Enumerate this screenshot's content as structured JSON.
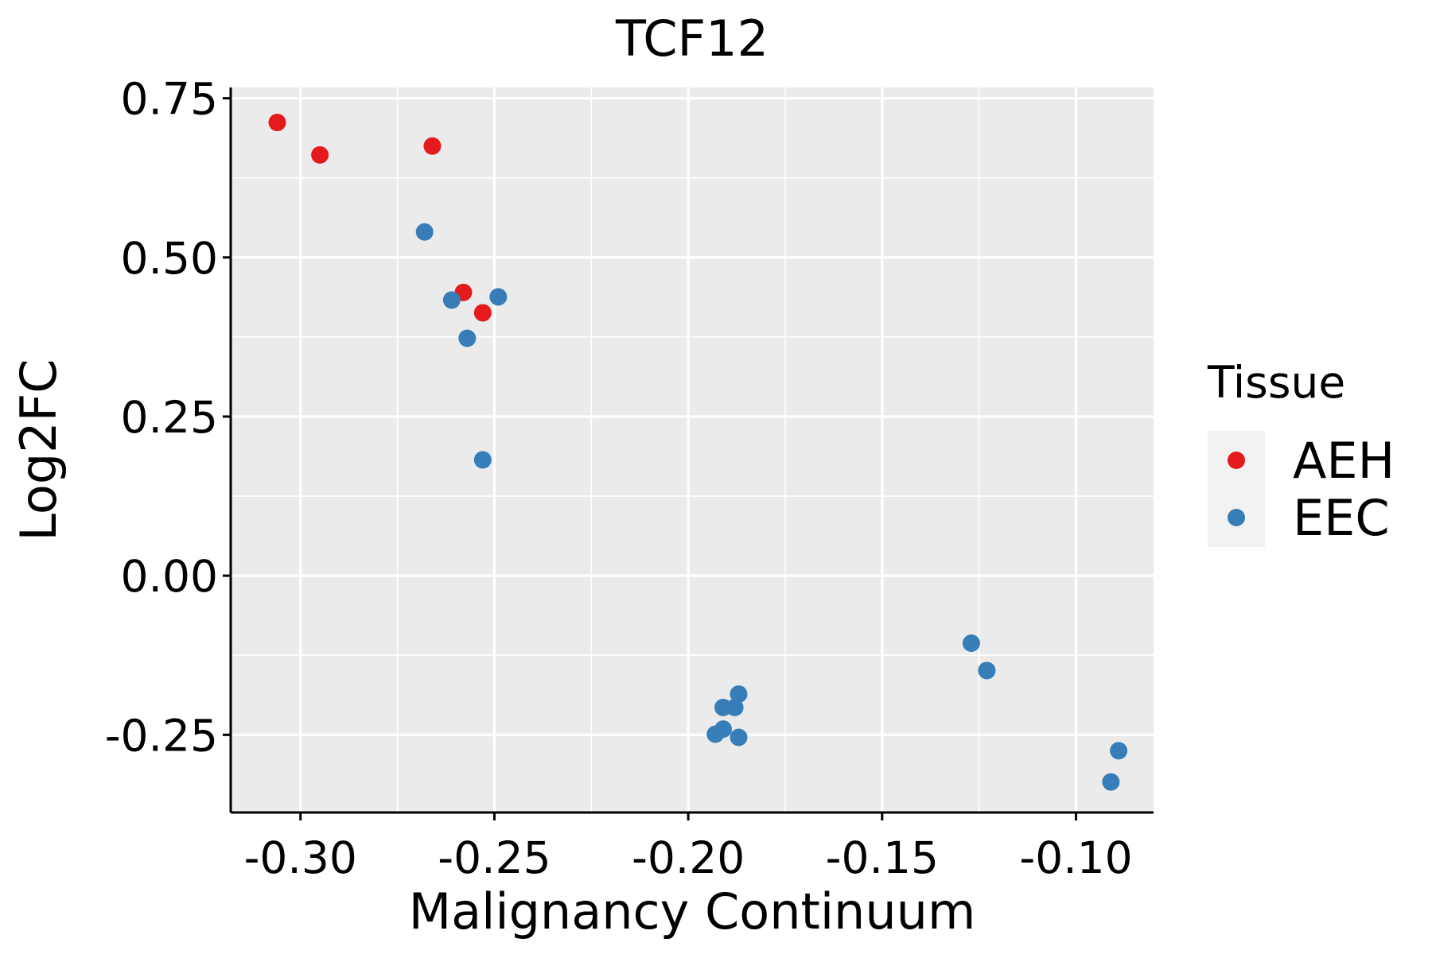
{
  "chart_data": {
    "type": "scatter",
    "title": "TCF12",
    "xlabel": "Malignancy Continuum",
    "ylabel": "Log2FC",
    "xlim": [
      -0.318,
      -0.08
    ],
    "ylim": [
      -0.372,
      0.767
    ],
    "x_ticks": [
      -0.3,
      -0.25,
      -0.2,
      -0.15,
      -0.1
    ],
    "x_tick_labels": [
      "-0.30",
      "-0.25",
      "-0.20",
      "-0.15",
      "-0.10"
    ],
    "y_ticks": [
      -0.25,
      0.0,
      0.25,
      0.5,
      0.75
    ],
    "y_tick_labels": [
      "-0.25",
      "0.00",
      "0.25",
      "0.50",
      "0.75"
    ],
    "grid": true,
    "legend": {
      "title": "Tissue",
      "position": "right",
      "entries": [
        {
          "name": "AEH",
          "color": "#E41A1C"
        },
        {
          "name": "EEC",
          "color": "#377EB8"
        }
      ]
    },
    "series": [
      {
        "name": "AEH",
        "color": "#E41A1C",
        "points": [
          {
            "x": -0.306,
            "y": 0.712
          },
          {
            "x": -0.295,
            "y": 0.661
          },
          {
            "x": -0.266,
            "y": 0.675
          },
          {
            "x": -0.258,
            "y": 0.445
          },
          {
            "x": -0.253,
            "y": 0.413
          }
        ]
      },
      {
        "name": "EEC",
        "color": "#377EB8",
        "points": [
          {
            "x": -0.268,
            "y": 0.54
          },
          {
            "x": -0.261,
            "y": 0.433
          },
          {
            "x": -0.249,
            "y": 0.438
          },
          {
            "x": -0.257,
            "y": 0.373
          },
          {
            "x": -0.253,
            "y": 0.182
          },
          {
            "x": -0.187,
            "y": -0.186
          },
          {
            "x": -0.188,
            "y": -0.207
          },
          {
            "x": -0.191,
            "y": -0.207
          },
          {
            "x": -0.191,
            "y": -0.241
          },
          {
            "x": -0.193,
            "y": -0.249
          },
          {
            "x": -0.187,
            "y": -0.254
          },
          {
            "x": -0.127,
            "y": -0.106
          },
          {
            "x": -0.123,
            "y": -0.149
          },
          {
            "x": -0.089,
            "y": -0.275
          },
          {
            "x": -0.091,
            "y": -0.324
          }
        ]
      }
    ]
  }
}
